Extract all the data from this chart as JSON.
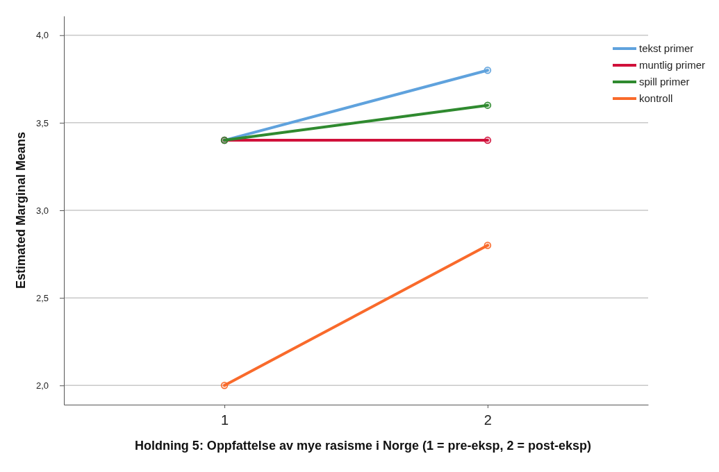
{
  "chart_data": {
    "type": "line",
    "xlabel": "Holdning 5: Oppfattelse av mye rasisme i Norge (1 = pre-eksp, 2 = post-eksp)",
    "ylabel": "Estimated Marginal Means",
    "x": [
      1,
      2
    ],
    "xlim": [
      0.39,
      2.61
    ],
    "xticks": [
      1,
      2
    ],
    "series": [
      {
        "name": "tekst primer",
        "color": "#5fa2dd",
        "values": [
          3.4,
          3.8
        ]
      },
      {
        "name": "muntlig primer",
        "color": "#d0103a",
        "values": [
          3.4,
          3.4
        ]
      },
      {
        "name": "spill primer",
        "color": "#2f8a2f",
        "values": [
          3.4,
          3.6
        ]
      },
      {
        "name": "kontroll",
        "color": "#f96a2b",
        "values": [
          2.0,
          2.8
        ]
      }
    ],
    "ylim": [
      1.89,
      4.11
    ],
    "yticks": [
      {
        "value": 2,
        "label": "2,0"
      },
      {
        "value": 2.5,
        "label": "2,5"
      },
      {
        "value": 3,
        "label": "3,0"
      },
      {
        "value": 3.5,
        "label": "3,5"
      },
      {
        "value": 4,
        "label": "4,0"
      }
    ],
    "grid": "y",
    "legend": "top right",
    "marker": "circle",
    "line_style": "solid"
  }
}
